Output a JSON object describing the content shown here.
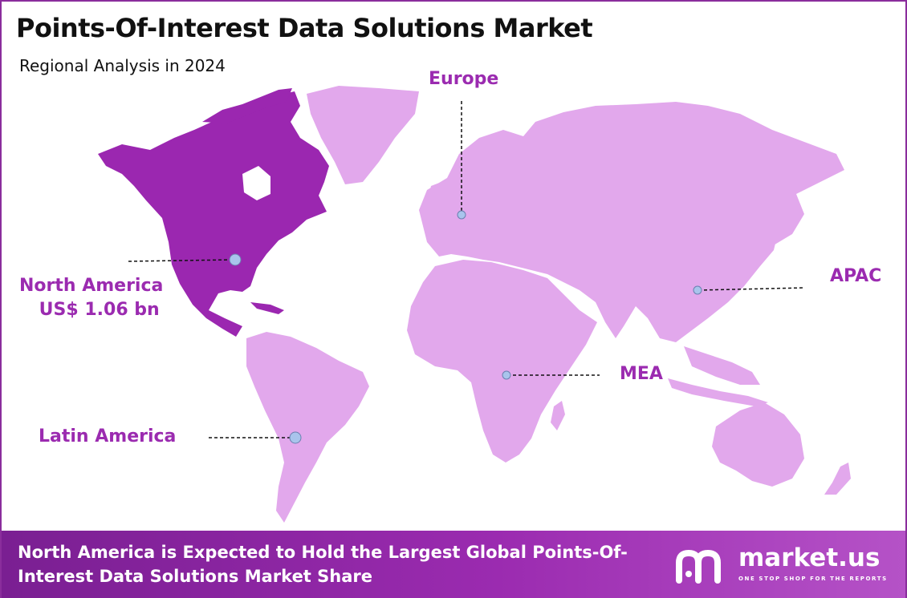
{
  "header": {
    "title": "Points-Of-Interest Data Solutions Market",
    "subtitle": "Regional Analysis in 2024"
  },
  "regions": {
    "europe": "Europe",
    "north_america": "North America",
    "north_america_value": "US$ 1.06 bn",
    "apac": "APAC",
    "mea": "MEA",
    "latin_america": "Latin America"
  },
  "footer": {
    "text": "North America is Expected to Hold the Largest Global Points-Of-Interest Data Solutions Market Share",
    "brand_name": "market.us",
    "brand_tagline": "ONE STOP SHOP FOR THE REPORTS"
  },
  "colors": {
    "highlight_region": "#9b27b0",
    "other_regions": "#e2a8ec",
    "label_color": "#9b2bb0",
    "footer_bg": "#8b2aa3",
    "marker": "#a9c4ec"
  },
  "icons": {
    "marker": "location-dot-icon",
    "brand": "market-us-logo-icon"
  }
}
